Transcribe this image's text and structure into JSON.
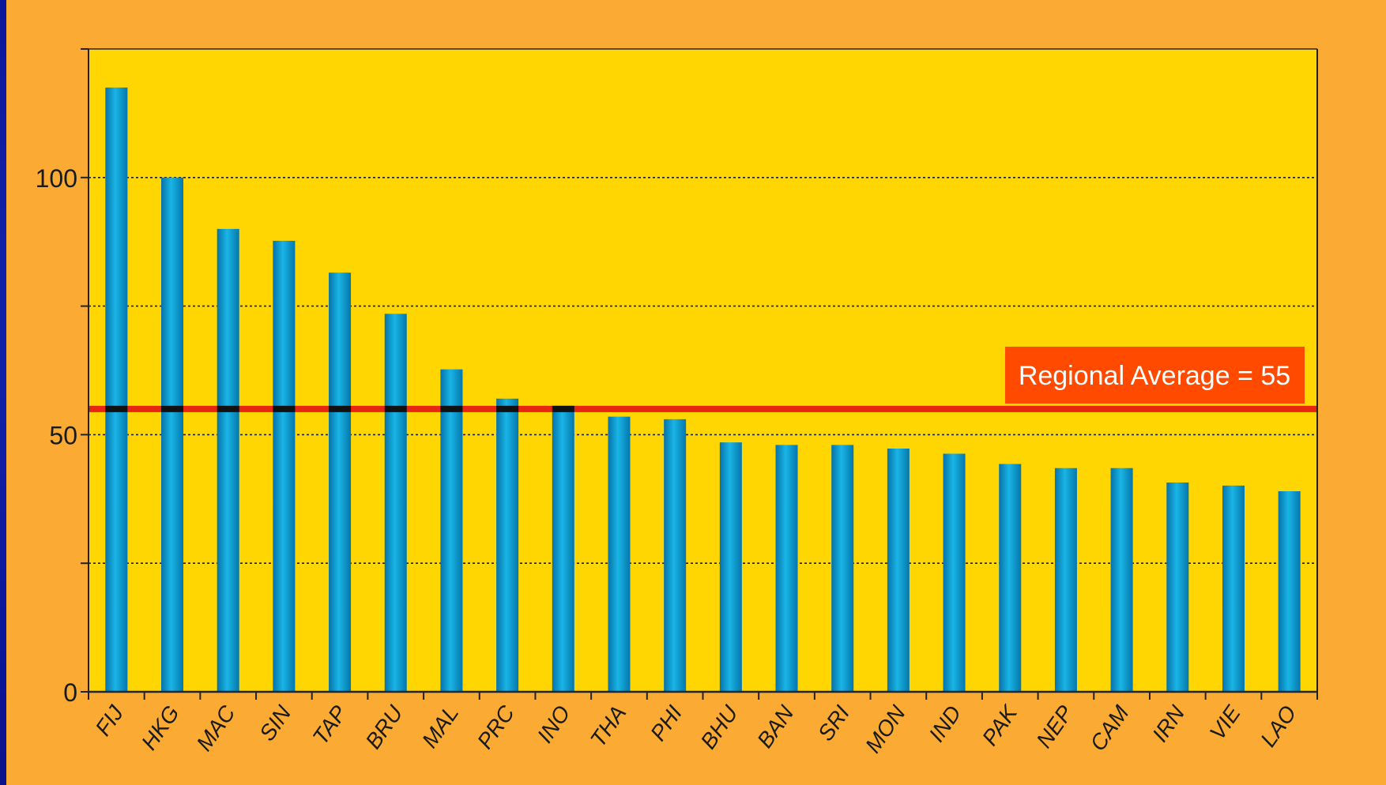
{
  "chart_data": {
    "type": "bar",
    "categories": [
      "FIJ",
      "HKG",
      "MAC",
      "SIN",
      "TAP",
      "BRU",
      "MAL",
      "PRC",
      "INO",
      "THA",
      "PHI",
      "BHU",
      "BAN",
      "SRI",
      "MON",
      "IND",
      "PAK",
      "NEP",
      "CAM",
      "IRN",
      "VIE",
      "LAO"
    ],
    "values": [
      117.5,
      100,
      90,
      87.7,
      81.5,
      73.5,
      62.7,
      57,
      55.5,
      53.5,
      53,
      48.5,
      48,
      48,
      47.3,
      46.3,
      44.3,
      43.5,
      43.5,
      40.7,
      40.1,
      39
    ],
    "yticks": [
      0,
      50,
      100
    ],
    "ylim": [
      0,
      125
    ],
    "grid": true,
    "reference_line": {
      "value": 55,
      "label": "Regional Average = 55"
    },
    "colors": {
      "panel_background": "#fbab34",
      "plot_background": "#ffd502",
      "bar": "#0a9fd4",
      "reference_line": "#e8250f",
      "reference_label_box": "#ff4a00",
      "reference_label_text": "#ffffff"
    }
  }
}
